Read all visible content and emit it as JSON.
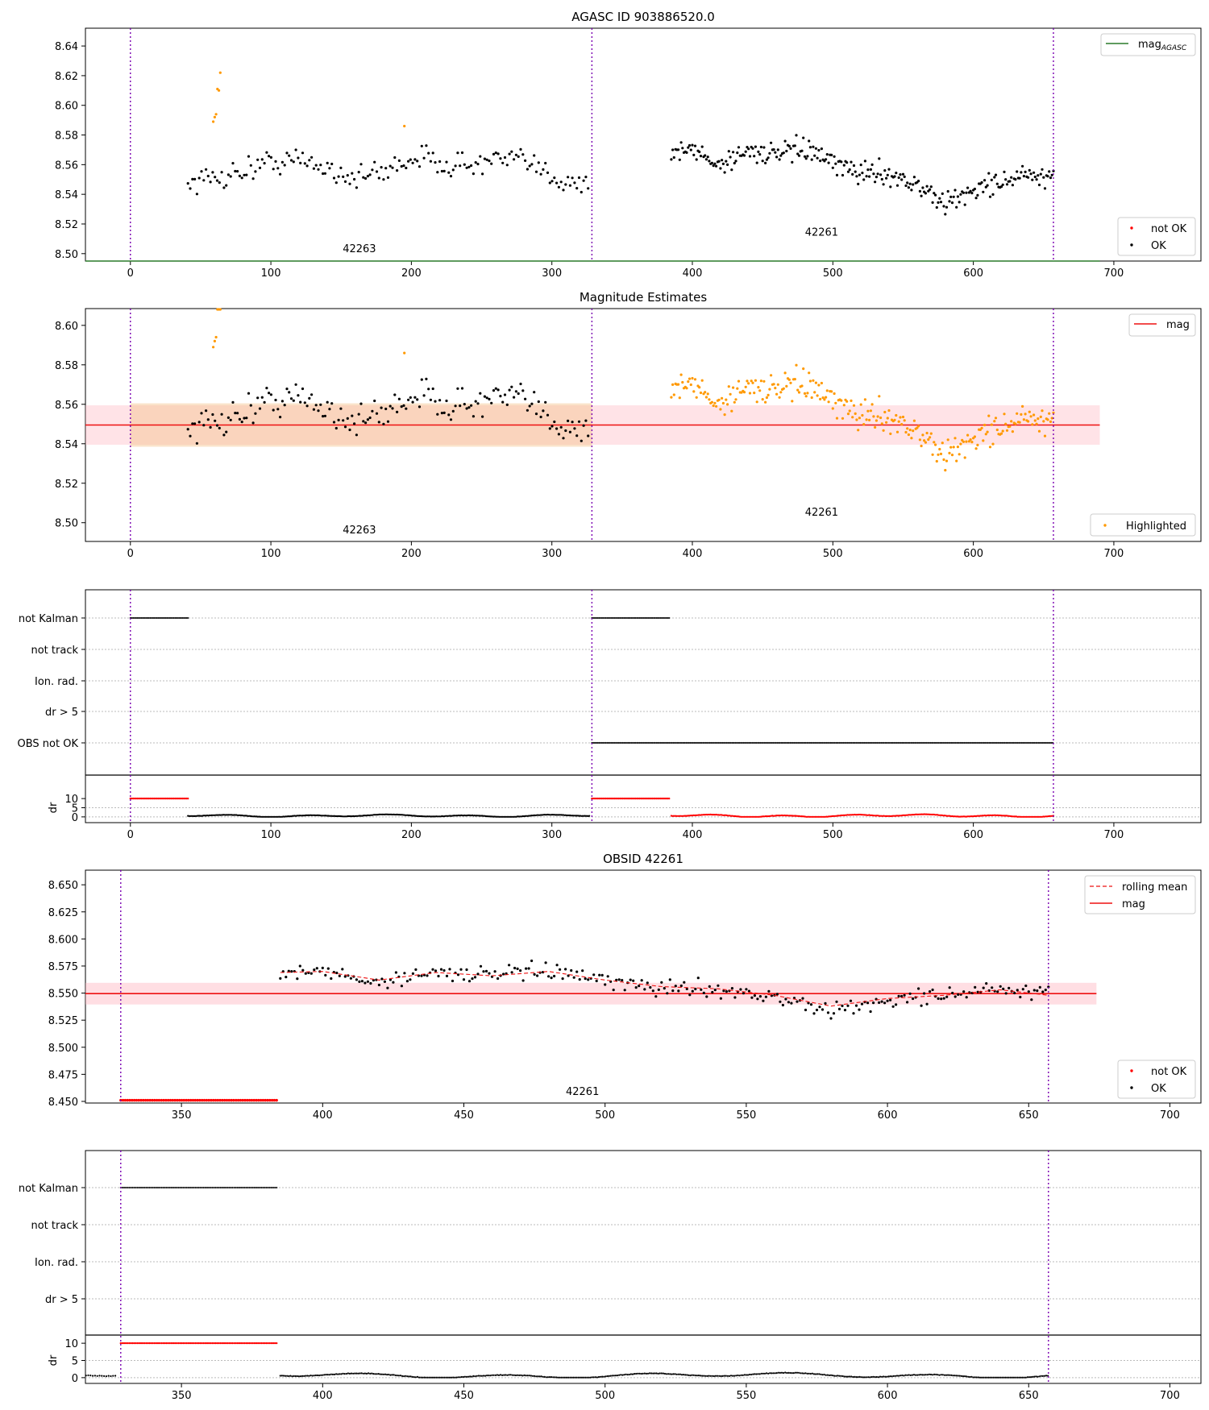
{
  "chart_data": [
    {
      "id": "p1",
      "type": "scatter",
      "title": "AGASC ID 903886520.0",
      "xlim": [
        -32,
        762
      ],
      "ylim": [
        8.495,
        8.652
      ],
      "xticks": [
        0,
        100,
        200,
        300,
        400,
        500,
        600,
        700
      ],
      "yticks": [
        8.5,
        8.52,
        8.54,
        8.56,
        8.58,
        8.6,
        8.62,
        8.64
      ],
      "ytick_decimals": 2,
      "vlines": [
        0,
        328.5,
        657
      ],
      "hline": {
        "y": 8.495,
        "x0": -32,
        "x1": 690,
        "color": "#2a7a2a"
      },
      "obsid_labels": [
        {
          "text": "42263",
          "x": 163,
          "y": 8.501
        },
        {
          "text": "42261",
          "x": 492,
          "y": 8.512
        }
      ],
      "legend_top": {
        "entries": [
          {
            "label": "mag",
            "sub": "AGASC",
            "kind": "line",
            "color": "#2a7a2a"
          }
        ]
      },
      "legend_bottom": {
        "entries": [
          {
            "label": "not OK",
            "kind": "dot",
            "color": "#ff0000"
          },
          {
            "label": "OK",
            "kind": "dot",
            "color": "#000000"
          }
        ]
      }
    },
    {
      "id": "p2",
      "type": "scatter",
      "title": "Magnitude Estimates",
      "xlim": [
        -32,
        762
      ],
      "ylim": [
        8.4905,
        8.6085
      ],
      "xticks": [
        0,
        100,
        200,
        300,
        400,
        500,
        600,
        700
      ],
      "yticks": [
        8.5,
        8.52,
        8.54,
        8.56,
        8.58,
        8.6
      ],
      "ytick_decimals": 2,
      "vlines": [
        0,
        328.5,
        657
      ],
      "mean_line": {
        "y": 8.5495,
        "x0": -32,
        "x1": 690,
        "color": "#ee1111"
      },
      "bands": [
        {
          "x0": -32,
          "x1": 690,
          "y0": 8.5395,
          "y1": 8.5595,
          "color": "#ffb6c1",
          "opacity": 0.38
        },
        {
          "x0": 0,
          "x1": 328.5,
          "y0": 8.5385,
          "y1": 8.5605,
          "color": "#f5c08a",
          "opacity": 0.45
        }
      ],
      "obsid_labels": [
        {
          "text": "42263",
          "x": 163,
          "y": 8.4945
        },
        {
          "text": "42261",
          "x": 492,
          "y": 8.5035
        }
      ],
      "legend_top": {
        "entries": [
          {
            "label": "mag",
            "kind": "line",
            "color": "#ee1111"
          }
        ]
      },
      "legend_bottom": {
        "entries": [
          {
            "label": "Highlighted",
            "kind": "dot",
            "color": "#ff9900"
          }
        ]
      }
    },
    {
      "id": "p3",
      "type": "flags",
      "xlim": [
        -32,
        762
      ],
      "xticks": [
        0,
        100,
        200,
        300,
        400,
        500,
        600,
        700
      ],
      "vlines": [
        0,
        328.5,
        657
      ],
      "categories": [
        "not Kalman",
        "not track",
        "Ion. rad.",
        "dr > 5",
        "OBS not OK"
      ],
      "segments": [
        {
          "row": "not Kalman",
          "x0": 0,
          "x1": 41
        },
        {
          "row": "not Kalman",
          "x0": 328.5,
          "x1": 384
        },
        {
          "row": "OBS not OK",
          "x0": 328.5,
          "x1": 657
        }
      ],
      "dr": {
        "ylabel": "dr",
        "ylim": [
          -0.5,
          10.5
        ],
        "yticks": [
          0,
          5,
          10
        ],
        "clip_value": 10,
        "clip_segments": [
          {
            "x0": 0,
            "x1": 41
          },
          {
            "x0": 328.5,
            "x1": 384
          }
        ],
        "series_colors": {
          "first": "#000000",
          "second": "#ff0000"
        }
      }
    },
    {
      "id": "p4",
      "type": "scatter",
      "title": "OBSID 42261",
      "xlim": [
        316,
        711
      ],
      "ylim": [
        8.4485,
        8.6635
      ],
      "xticks": [
        350,
        400,
        450,
        500,
        550,
        600,
        650,
        700
      ],
      "yticks": [
        8.45,
        8.475,
        8.5,
        8.525,
        8.55,
        8.575,
        8.6,
        8.625,
        8.65
      ],
      "ytick_decimals": 3,
      "vlines": [
        328.5,
        657
      ],
      "mean_line": {
        "y": 8.5495,
        "x0": 316,
        "x1": 674,
        "color": "#ee1111"
      },
      "bands": [
        {
          "x0": 316,
          "x1": 674,
          "y0": 8.5395,
          "y1": 8.5595,
          "color": "#ffb6c1",
          "opacity": 0.45
        }
      ],
      "not_ok": {
        "x0": 328.5,
        "x1": 384,
        "y": 8.451
      },
      "obsid_labels": [
        {
          "text": "42261",
          "x": 492,
          "y": 8.456
        }
      ],
      "legend_top": {
        "entries": [
          {
            "label": "rolling mean",
            "kind": "dashed",
            "color": "#ee1111"
          },
          {
            "label": "mag",
            "kind": "line",
            "color": "#ee1111"
          }
        ]
      },
      "legend_bottom": {
        "entries": [
          {
            "label": "not OK",
            "kind": "dot",
            "color": "#ff0000"
          },
          {
            "label": "OK",
            "kind": "dot",
            "color": "#000000"
          }
        ]
      }
    },
    {
      "id": "p5",
      "type": "flags",
      "xlim": [
        316,
        711
      ],
      "xticks": [
        350,
        400,
        450,
        500,
        550,
        600,
        650,
        700
      ],
      "vlines": [
        328.5,
        657
      ],
      "categories": [
        "not Kalman",
        "not track",
        "Ion. rad.",
        "dr > 5"
      ],
      "segments": [
        {
          "row": "not Kalman",
          "x0": 328.5,
          "x1": 384
        }
      ],
      "dr": {
        "ylabel": "dr",
        "ylim": [
          -0.5,
          10.5
        ],
        "yticks": [
          0,
          5,
          10
        ],
        "clip_value": 10,
        "clip_segments": [
          {
            "x0": 328.5,
            "x1": 384
          }
        ],
        "series_colors": {
          "first": "#000000",
          "second": "#000000"
        }
      }
    }
  ],
  "series_model": {
    "obs_42263": {
      "x_start": 41,
      "x_end": 327,
      "x_step": 1.6
    },
    "obs_42261": {
      "x_start": 385,
      "x_end": 657,
      "x_step": 1.0
    },
    "highlight_outliers": [
      {
        "x": 59,
        "y": 8.589
      },
      {
        "x": 60,
        "y": 8.592
      },
      {
        "x": 61,
        "y": 8.594
      },
      {
        "x": 62,
        "y": 8.611
      },
      {
        "x": 63,
        "y": 8.61
      },
      {
        "x": 64,
        "y": 8.622
      },
      {
        "x": 195,
        "y": 8.586
      }
    ],
    "rolling_mean": [
      {
        "x": 385,
        "y": 8.569
      },
      {
        "x": 400,
        "y": 8.57
      },
      {
        "x": 420,
        "y": 8.562
      },
      {
        "x": 440,
        "y": 8.569
      },
      {
        "x": 460,
        "y": 8.566
      },
      {
        "x": 480,
        "y": 8.57
      },
      {
        "x": 500,
        "y": 8.562
      },
      {
        "x": 520,
        "y": 8.556
      },
      {
        "x": 540,
        "y": 8.554
      },
      {
        "x": 560,
        "y": 8.548
      },
      {
        "x": 580,
        "y": 8.538
      },
      {
        "x": 600,
        "y": 8.545
      },
      {
        "x": 620,
        "y": 8.548
      },
      {
        "x": 640,
        "y": 8.553
      },
      {
        "x": 657,
        "y": 8.548
      }
    ],
    "anchors_42263": [
      {
        "x": 41,
        "y": 8.548
      },
      {
        "x": 60,
        "y": 8.551
      },
      {
        "x": 80,
        "y": 8.556
      },
      {
        "x": 100,
        "y": 8.562
      },
      {
        "x": 120,
        "y": 8.563
      },
      {
        "x": 140,
        "y": 8.558
      },
      {
        "x": 160,
        "y": 8.551
      },
      {
        "x": 180,
        "y": 8.555
      },
      {
        "x": 200,
        "y": 8.565
      },
      {
        "x": 220,
        "y": 8.562
      },
      {
        "x": 240,
        "y": 8.559
      },
      {
        "x": 260,
        "y": 8.563
      },
      {
        "x": 280,
        "y": 8.562
      },
      {
        "x": 300,
        "y": 8.552
      },
      {
        "x": 327,
        "y": 8.547
      }
    ],
    "anchors_42261": [
      {
        "x": 385,
        "y": 8.568
      },
      {
        "x": 400,
        "y": 8.57
      },
      {
        "x": 420,
        "y": 8.56
      },
      {
        "x": 440,
        "y": 8.57
      },
      {
        "x": 460,
        "y": 8.566
      },
      {
        "x": 480,
        "y": 8.571
      },
      {
        "x": 500,
        "y": 8.56
      },
      {
        "x": 520,
        "y": 8.555
      },
      {
        "x": 540,
        "y": 8.554
      },
      {
        "x": 560,
        "y": 8.546
      },
      {
        "x": 580,
        "y": 8.533
      },
      {
        "x": 600,
        "y": 8.543
      },
      {
        "x": 620,
        "y": 8.549
      },
      {
        "x": 640,
        "y": 8.553
      },
      {
        "x": 657,
        "y": 8.548
      }
    ]
  }
}
